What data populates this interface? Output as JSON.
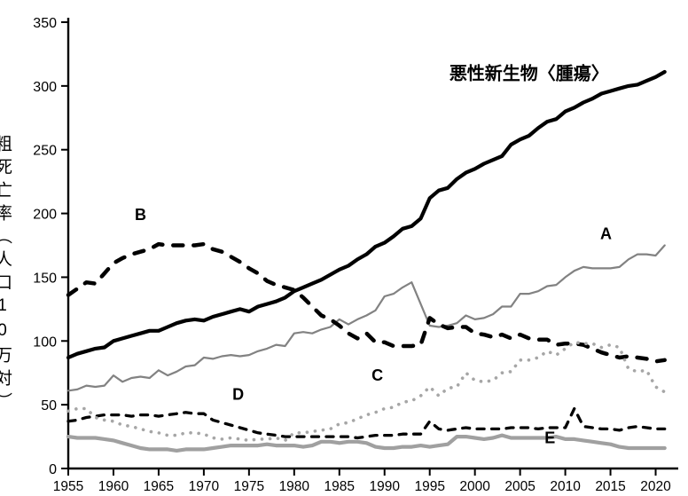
{
  "chart_data": {
    "type": "line",
    "title": "",
    "xlabel": "",
    "ylabel": "粗死亡率（人口10万対）",
    "grid": false,
    "legend_position": "none (direct on-chart line labels)",
    "ylim": [
      0,
      350
    ],
    "xlim": [
      1955,
      2022.5
    ],
    "y_ticks": [
      0,
      50,
      100,
      150,
      200,
      250,
      300,
      350
    ],
    "x_ticks": [
      1955,
      1960,
      1965,
      1970,
      1975,
      1980,
      1985,
      1990,
      1995,
      2000,
      2005,
      2010,
      2015,
      2020
    ],
    "x_range": [
      1955,
      2021
    ],
    "x_step": 1,
    "series": [
      {
        "id": "A",
        "label": "A",
        "color": "#828282",
        "line_style": "solid",
        "width": 2.2,
        "values": [
          61,
          62,
          65,
          64,
          65,
          73,
          68,
          71,
          72,
          71,
          77,
          73,
          76,
          80,
          81,
          87,
          86,
          88,
          89,
          88,
          89,
          92,
          94,
          97,
          96,
          106,
          107,
          106,
          109,
          111,
          117,
          113,
          117,
          120,
          124,
          135,
          137,
          142,
          146,
          129,
          112,
          111,
          112,
          114,
          120,
          117,
          118,
          121,
          127,
          127,
          137,
          137,
          139,
          143,
          144,
          150,
          155,
          158,
          157,
          157,
          157,
          158,
          164,
          168,
          168,
          167,
          175
        ]
      },
      {
        "id": "E",
        "label": "E",
        "color": "#a0a0a0",
        "line_style": "solid",
        "width": 4.2,
        "values": [
          25,
          24,
          24,
          24,
          23,
          22,
          20,
          18,
          16,
          15,
          15,
          15,
          14,
          15,
          15,
          15,
          16,
          17,
          18,
          18,
          18,
          18,
          19,
          18,
          18,
          18,
          17,
          18,
          21,
          21,
          20,
          21,
          21,
          20,
          17,
          16,
          16,
          17,
          17,
          18,
          17,
          18,
          19,
          25,
          25,
          24,
          23,
          24,
          26,
          24,
          24,
          24,
          24,
          24,
          25,
          23,
          23,
          22,
          21,
          20,
          19,
          17,
          16,
          16,
          16,
          16,
          16
        ]
      },
      {
        "id": "D",
        "label": "D",
        "color": "#000000",
        "line_style": "dashed",
        "width": 3.3,
        "values": [
          37,
          38,
          40,
          41,
          42,
          42,
          42,
          41,
          42,
          42,
          41,
          42,
          43,
          44,
          43,
          43,
          38,
          36,
          34,
          32,
          30,
          28,
          27,
          26,
          25,
          25,
          25,
          25,
          25,
          25,
          25,
          25,
          24,
          25,
          26,
          26,
          26,
          27,
          27,
          27,
          37,
          31,
          30,
          31,
          32,
          31,
          31,
          31,
          31,
          32,
          32,
          32,
          31,
          32,
          32,
          32,
          47,
          33,
          32,
          31,
          31,
          30,
          32,
          33,
          32,
          31,
          31
        ]
      },
      {
        "id": "B",
        "label": "B",
        "color": "#000000",
        "line_style": "dashed-long",
        "width": 4.5,
        "values": [
          136,
          141,
          146,
          145,
          153,
          161,
          165,
          168,
          170,
          172,
          176,
          175,
          175,
          175,
          175,
          176,
          172,
          170,
          166,
          162,
          157,
          153,
          147,
          144,
          142,
          140,
          134,
          127,
          120,
          117,
          112,
          106,
          102,
          106,
          99,
          99,
          96,
          96,
          96,
          97,
          118,
          113,
          110,
          111,
          111,
          106,
          105,
          103,
          105,
          102,
          105,
          102,
          101,
          101,
          97,
          98,
          98,
          97,
          94,
          91,
          89,
          87,
          88,
          87,
          86,
          84,
          85
        ]
      },
      {
        "id": "C",
        "label": "C",
        "color": "#a6a6a6",
        "line_style": "dotted",
        "width": 3.6,
        "values": [
          45,
          47,
          47,
          40,
          38,
          37,
          34,
          33,
          31,
          29,
          28,
          26,
          26,
          28,
          28,
          27,
          24,
          23,
          24,
          23,
          22,
          23,
          23,
          24,
          22,
          28,
          28,
          29,
          30,
          31,
          35,
          36,
          39,
          42,
          44,
          47,
          48,
          52,
          53,
          57,
          64,
          57,
          63,
          64,
          75,
          69,
          68,
          69,
          75,
          76,
          85,
          85,
          87,
          92,
          89,
          94,
          99,
          98,
          98,
          95,
          97,
          95,
          78,
          76,
          77,
          64,
          60
        ]
      },
      {
        "id": "malignant",
        "label": "悪性新生物〈腫瘍〉",
        "color": "#000000",
        "line_style": "solid",
        "width": 4.2,
        "values": [
          87,
          90,
          92,
          94,
          95,
          100,
          102,
          104,
          106,
          108,
          108,
          111,
          114,
          116,
          117,
          116,
          119,
          121,
          123,
          125,
          123,
          127,
          129,
          131,
          134,
          139,
          142,
          145,
          148,
          152,
          156,
          159,
          164,
          168,
          174,
          177,
          182,
          188,
          190,
          196,
          212,
          218,
          220,
          227,
          232,
          235,
          239,
          242,
          245,
          254,
          258,
          261,
          267,
          272,
          274,
          280,
          283,
          287,
          290,
          294,
          296,
          298,
          300,
          301,
          304,
          307,
          311
        ]
      }
    ],
    "annotations": [
      {
        "id": "malignant",
        "text": "悪性新生物〈腫瘍〉",
        "x": 2006,
        "y": 305,
        "big": true
      },
      {
        "id": "B",
        "text": "B",
        "x": 1963.0,
        "y": 195,
        "big": false
      },
      {
        "id": "A",
        "text": "A",
        "x": 2014.5,
        "y": 180,
        "big": false
      },
      {
        "id": "C",
        "text": "C",
        "x": 1989.2,
        "y": 69,
        "big": false
      },
      {
        "id": "D",
        "text": "D",
        "x": 1973.8,
        "y": 54,
        "big": false
      },
      {
        "id": "E",
        "text": "E",
        "x": 2008.3,
        "y": 20,
        "big": false
      }
    ]
  }
}
